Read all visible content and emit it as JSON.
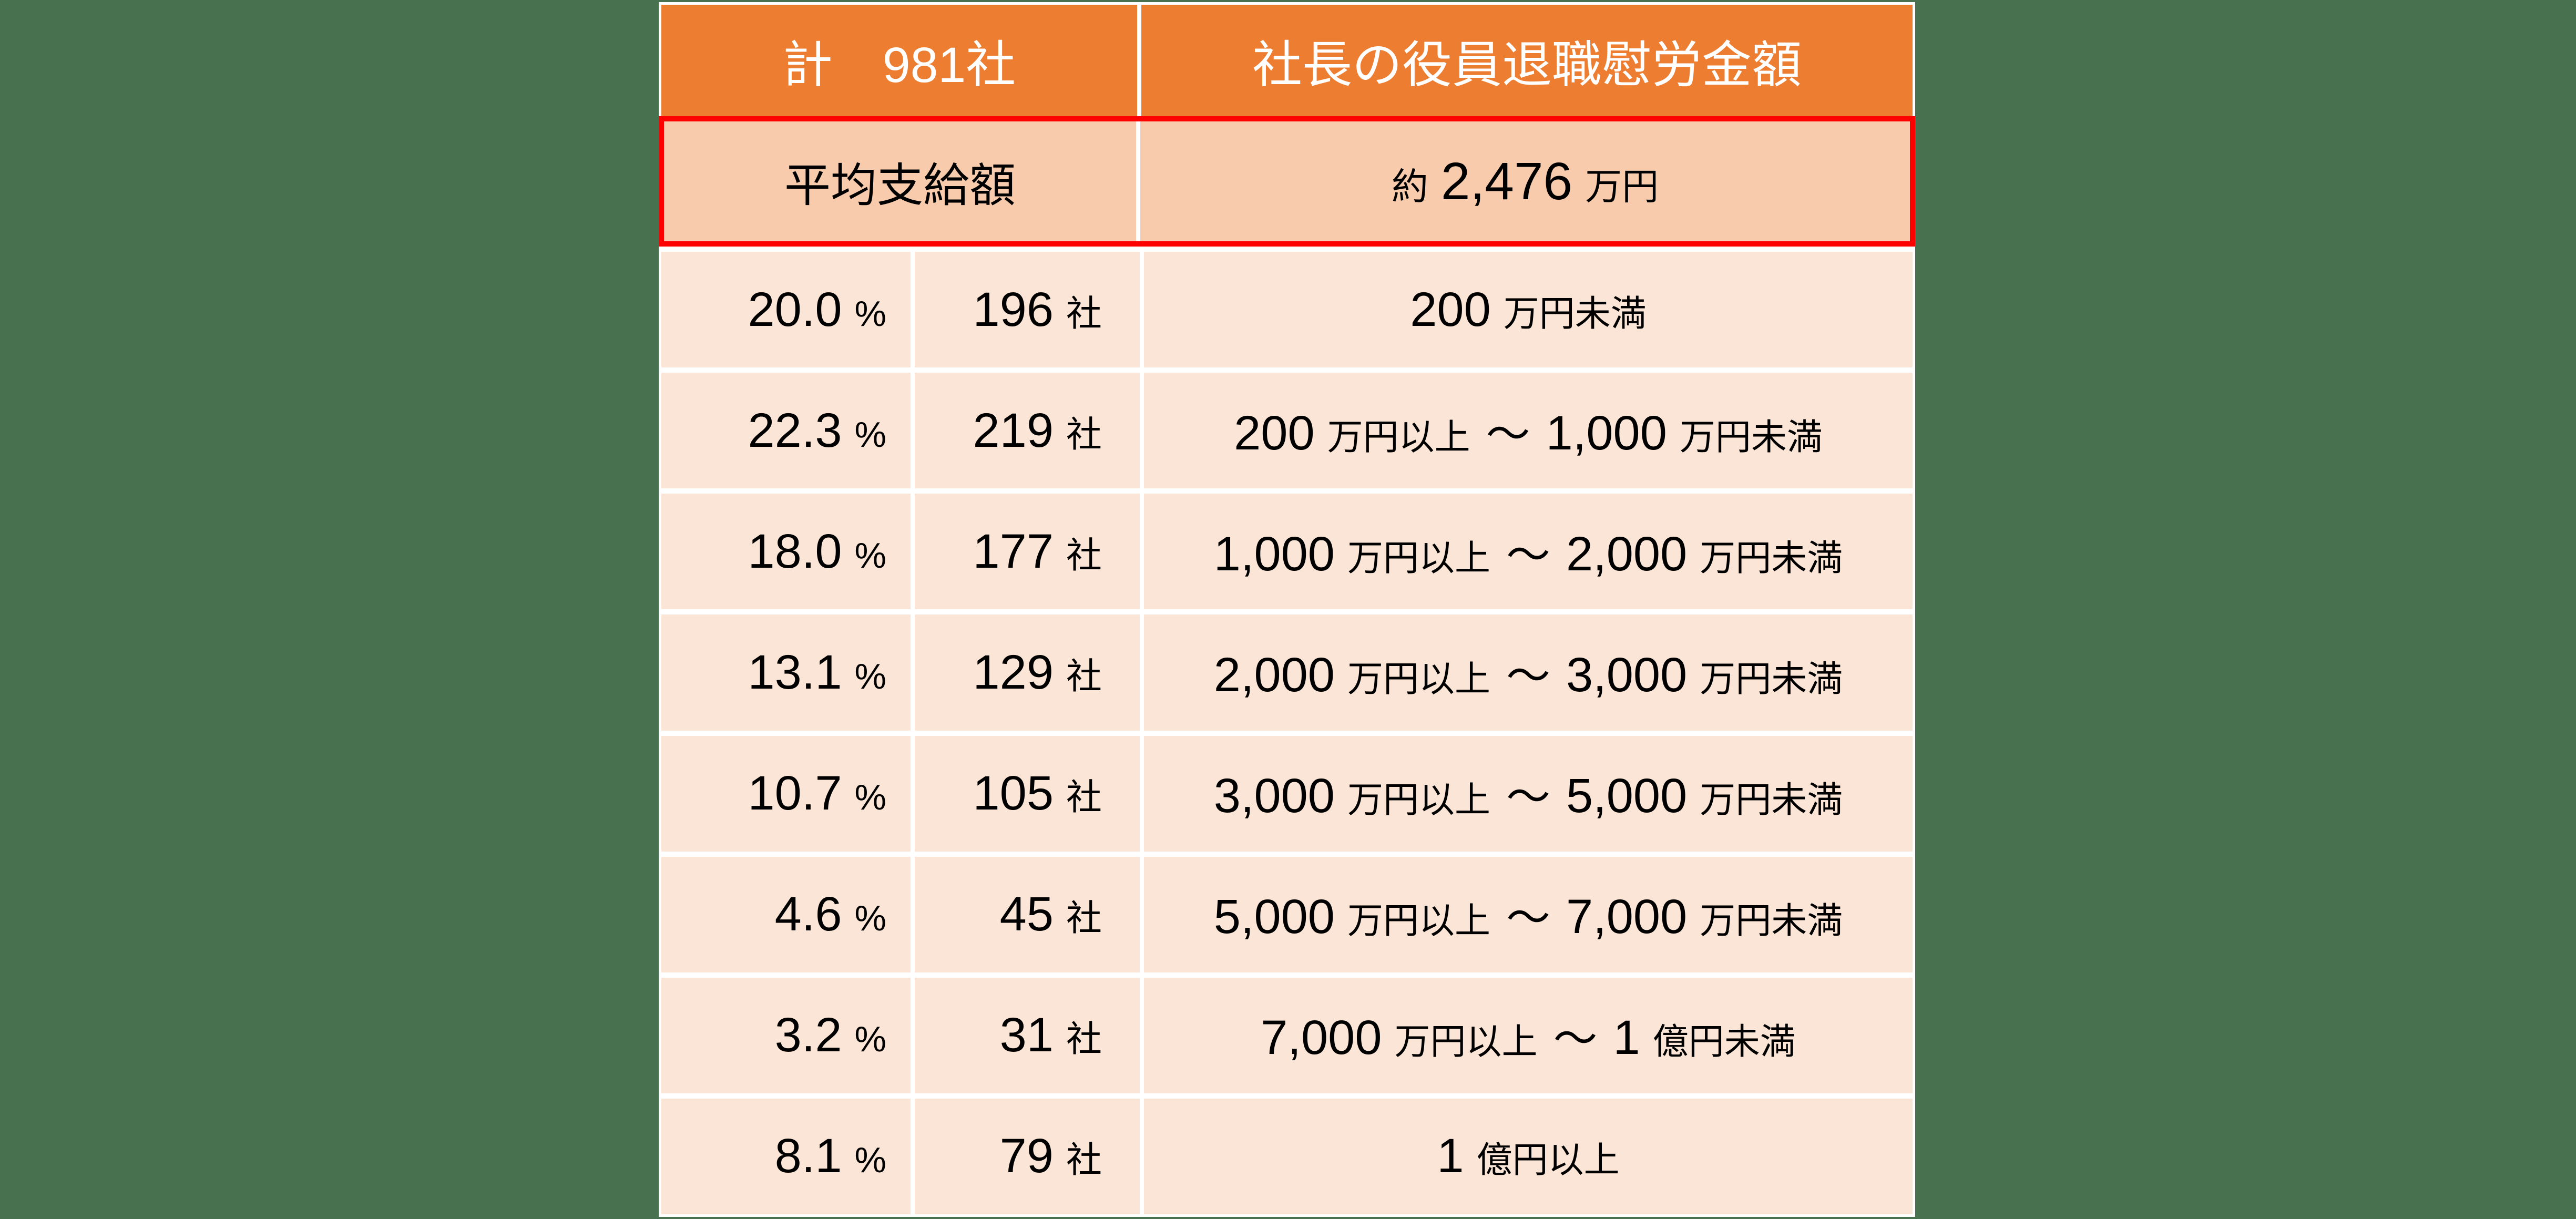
{
  "page": {
    "background_color": "#47714F"
  },
  "colors": {
    "header_bg": "#EC7D31",
    "average_row_bg": "#F7CBAC",
    "data_row_bg": "#FBE5D6",
    "highlight_border": "#FF0000",
    "gridline": "#FFFFFF",
    "header_text": "#FFFFFF",
    "body_text": "#000000"
  },
  "table": {
    "header": {
      "total": "計　981社",
      "title": "社長の役員退職慰労金額"
    },
    "average": {
      "label": "平均支給額",
      "prefix": "約",
      "number": "2,476",
      "unit": "万円"
    },
    "units": {
      "percent": "%",
      "companies": "社"
    },
    "tilde": "～",
    "rows": [
      {
        "percent": "20.0",
        "companies": "196",
        "range_parts": [
          {
            "n": "200",
            "u": "万円未満"
          }
        ]
      },
      {
        "percent": "22.3",
        "companies": "219",
        "range_parts": [
          {
            "n": "200",
            "u": "万円以上"
          },
          {
            "n": "1,000",
            "u": "万円未満"
          }
        ]
      },
      {
        "percent": "18.0",
        "companies": "177",
        "range_parts": [
          {
            "n": "1,000",
            "u": "万円以上"
          },
          {
            "n": "2,000",
            "u": "万円未満"
          }
        ]
      },
      {
        "percent": "13.1",
        "companies": "129",
        "range_parts": [
          {
            "n": "2,000",
            "u": "万円以上"
          },
          {
            "n": "3,000",
            "u": "万円未満"
          }
        ]
      },
      {
        "percent": "10.7",
        "companies": "105",
        "range_parts": [
          {
            "n": "3,000",
            "u": "万円以上"
          },
          {
            "n": "5,000",
            "u": "万円未満"
          }
        ]
      },
      {
        "percent": "4.6",
        "companies": "45",
        "range_parts": [
          {
            "n": "5,000",
            "u": "万円以上"
          },
          {
            "n": "7,000",
            "u": "万円未満"
          }
        ]
      },
      {
        "percent": "3.2",
        "companies": "31",
        "range_parts": [
          {
            "n": "7,000",
            "u": "万円以上"
          },
          {
            "n": "1",
            "u": "億円未満"
          }
        ]
      },
      {
        "percent": "8.1",
        "companies": "79",
        "range_parts": [
          {
            "n": "1",
            "u": "億円以上"
          }
        ]
      }
    ]
  },
  "chart_data": {
    "type": "table",
    "title": "社長の役員退職慰労金額",
    "total_label": "計　981社",
    "total_companies": 981,
    "average_label": "平均支給額",
    "average_value": "約 2,476 万円",
    "categories": [
      "200 万円未満",
      "200 万円以上 ～ 1,000 万円未満",
      "1,000 万円以上 ～ 2,000 万円未満",
      "2,000 万円以上 ～ 3,000 万円未満",
      "3,000 万円以上 ～ 5,000 万円未満",
      "5,000 万円以上 ～ 7,000 万円未満",
      "7,000 万円以上 ～ 1 億円未満",
      "1 億円以上"
    ],
    "series": [
      {
        "name": "%",
        "values": [
          20.0,
          22.3,
          18.0,
          13.1,
          10.7,
          4.6,
          3.2,
          8.1
        ]
      },
      {
        "name": "社",
        "values": [
          196,
          219,
          177,
          129,
          105,
          45,
          31,
          79
        ]
      }
    ]
  }
}
